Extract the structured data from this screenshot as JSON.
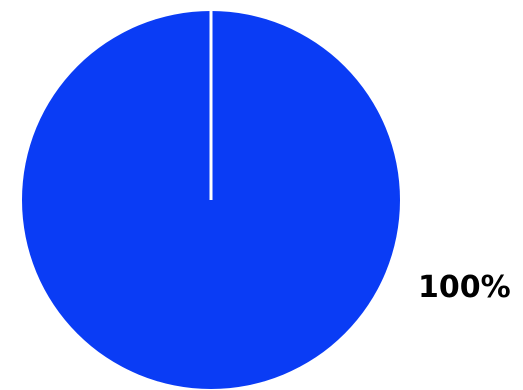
{
  "chart_data": {
    "type": "pie",
    "title": "",
    "slices": [
      {
        "value": 100,
        "label": "100%",
        "color": "#0a3cf5"
      }
    ],
    "separator_color": "#ffffff",
    "legend": "none"
  }
}
